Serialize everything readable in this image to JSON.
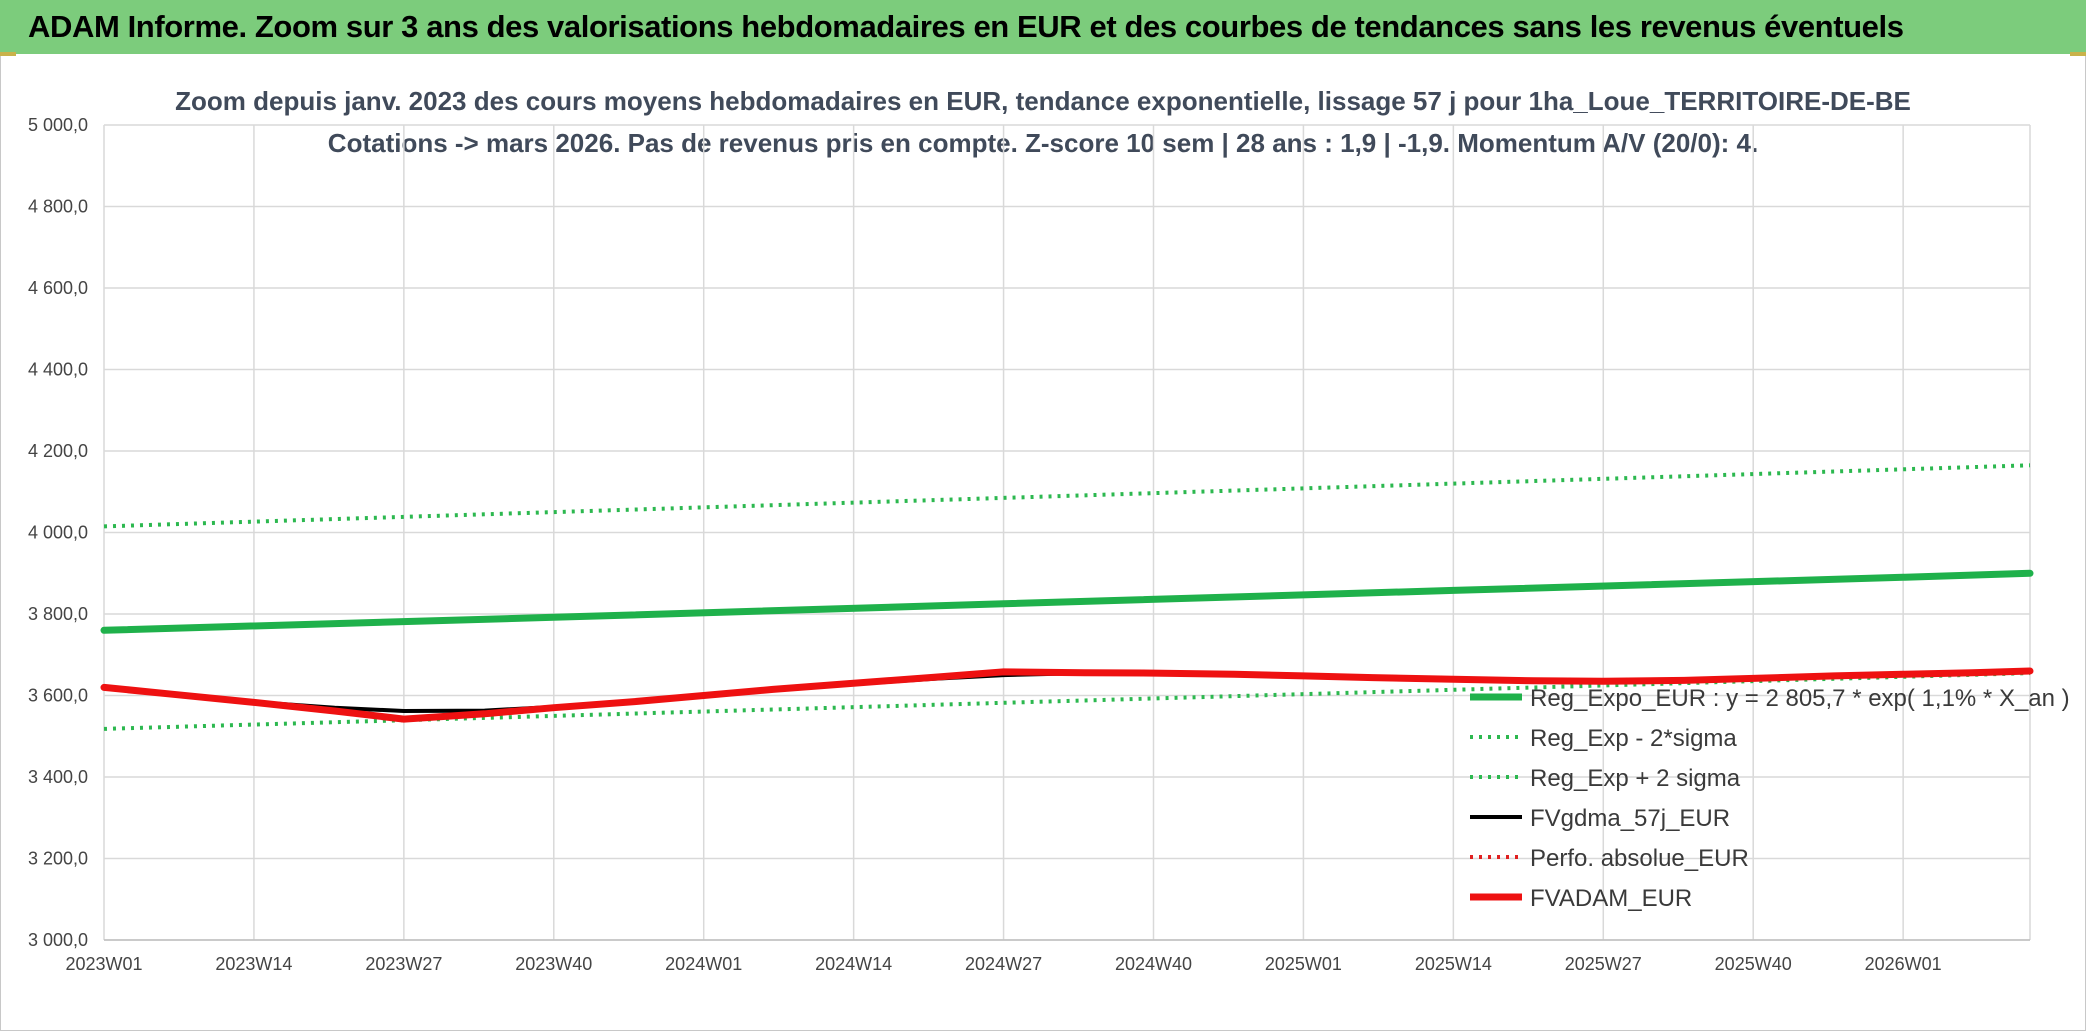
{
  "banner": {
    "title": "ADAM Informe. Zoom sur 3 ans des valorisations hebdomadaires en EUR et des courbes de tendances sans les revenus éventuels"
  },
  "colors": {
    "banner_bg": "#7ccc7c",
    "trend_green": "#1fb14b",
    "band_green": "#2cb84f",
    "gdma_black": "#000000",
    "perf_red": "#e02020",
    "adam_red": "#ee1111",
    "grid": "#d9d9d9"
  },
  "chart_data": {
    "type": "line",
    "title": "Zoom depuis janv. 2023 des cours moyens hebdomadaires en EUR, tendance exponentielle, lissage 57 j pour 1ha_Loue_TERRITOIRE-DE-BE",
    "subtitle": "Cotations -> mars 2026. Pas de revenus pris en compte. Z-score 10 sem | 28 ans : 1,9 | -1,9. Momentum A/V (20/0): 4.",
    "xlabel": "",
    "ylabel": "",
    "ylim": [
      3000,
      5000
    ],
    "y_ticks": [
      "3 000,0",
      "3 200,0",
      "3 400,0",
      "3 600,0",
      "3 800,0",
      "4 000,0",
      "4 200,0",
      "4 400,0",
      "4 600,0",
      "4 800,0",
      "5 000,0"
    ],
    "x_ticks": [
      "2023W01",
      "2023W14",
      "2023W27",
      "2023W40",
      "2024W01",
      "2024W14",
      "2024W27",
      "2024W40",
      "2025W01",
      "2025W14",
      "2025W27",
      "2025W40",
      "2026W01"
    ],
    "x_last": "2026W12",
    "grid": true,
    "legend_position": "bottom-right",
    "series": [
      {
        "name": "Reg_Expo_EUR : y = 2 805,7 * exp( 1,1% *  X_an )",
        "style": "solid-thick",
        "color": "#1fb14b",
        "x": [
          "2023W01",
          "2023W40",
          "2024W27",
          "2025W14",
          "2026W01",
          "2026W12"
        ],
        "values": [
          3760,
          3792,
          3825,
          3858,
          3890,
          3900
        ]
      },
      {
        "name": "Reg_Exp - 2*sigma",
        "style": "dotted",
        "color": "#2cb84f",
        "x": [
          "2023W01",
          "2023W40",
          "2024W27",
          "2025W14",
          "2026W01",
          "2026W12"
        ],
        "values": [
          3518,
          3550,
          3582,
          3614,
          3646,
          3655
        ]
      },
      {
        "name": "Reg_Exp + 2 sigma",
        "style": "dotted",
        "color": "#2cb84f",
        "x": [
          "2023W01",
          "2023W40",
          "2024W27",
          "2025W14",
          "2026W01",
          "2026W12"
        ],
        "values": [
          4015,
          4050,
          4085,
          4120,
          4155,
          4165
        ]
      },
      {
        "name": "FVgdma_57j_EUR",
        "style": "solid",
        "color": "#000000",
        "x": [
          "2023W01",
          "2023W07",
          "2023W14",
          "2023W21",
          "2023W27",
          "2023W34",
          "2023W40",
          "2023W47",
          "2024W01",
          "2024W07",
          "2024W14",
          "2024W21",
          "2024W27",
          "2024W34",
          "2024W40",
          "2024W47",
          "2025W01",
          "2025W07",
          "2025W14",
          "2025W21",
          "2025W27",
          "2025W34",
          "2025W40",
          "2025W47",
          "2026W01",
          "2026W07",
          "2026W12"
        ],
        "values": [
          3620,
          3602,
          3584,
          3570,
          3562,
          3563,
          3572,
          3584,
          3598,
          3613,
          3628,
          3641,
          3650,
          3655,
          3655,
          3652,
          3648,
          3644,
          3640,
          3636,
          3635,
          3637,
          3642,
          3648,
          3652,
          3656,
          3660
        ]
      },
      {
        "name": "Perfo. absolue_EUR",
        "style": "dotted",
        "color": "#e02020",
        "x": [
          "2023W01",
          "2023W07",
          "2023W14",
          "2023W21",
          "2023W27",
          "2023W34",
          "2023W40",
          "2023W47",
          "2024W01",
          "2024W07",
          "2024W14",
          "2024W21",
          "2024W27",
          "2024W34",
          "2024W40",
          "2024W47",
          "2025W01",
          "2025W07",
          "2025W14",
          "2025W21",
          "2025W27",
          "2025W34",
          "2025W40",
          "2025W47",
          "2026W01",
          "2026W07",
          "2026W12"
        ],
        "values": [
          3620,
          3603,
          3583,
          3562,
          3542,
          3555,
          3570,
          3585,
          3600,
          3615,
          3630,
          3645,
          3658,
          3656,
          3655,
          3652,
          3648,
          3644,
          3640,
          3636,
          3635,
          3637,
          3642,
          3648,
          3652,
          3656,
          3660
        ]
      },
      {
        "name": "FVADAM_EUR",
        "style": "solid-thick",
        "color": "#ee1111",
        "x": [
          "2023W01",
          "2023W07",
          "2023W14",
          "2023W21",
          "2023W27",
          "2023W34",
          "2023W40",
          "2023W47",
          "2024W01",
          "2024W07",
          "2024W14",
          "2024W21",
          "2024W27",
          "2024W34",
          "2024W40",
          "2024W47",
          "2025W01",
          "2025W07",
          "2025W14",
          "2025W21",
          "2025W27",
          "2025W34",
          "2025W40",
          "2025W47",
          "2026W01",
          "2026W07",
          "2026W12"
        ],
        "values": [
          3620,
          3603,
          3583,
          3562,
          3542,
          3555,
          3570,
          3585,
          3600,
          3615,
          3630,
          3645,
          3658,
          3656,
          3655,
          3652,
          3648,
          3644,
          3640,
          3636,
          3635,
          3637,
          3642,
          3648,
          3652,
          3656,
          3660
        ]
      }
    ]
  }
}
